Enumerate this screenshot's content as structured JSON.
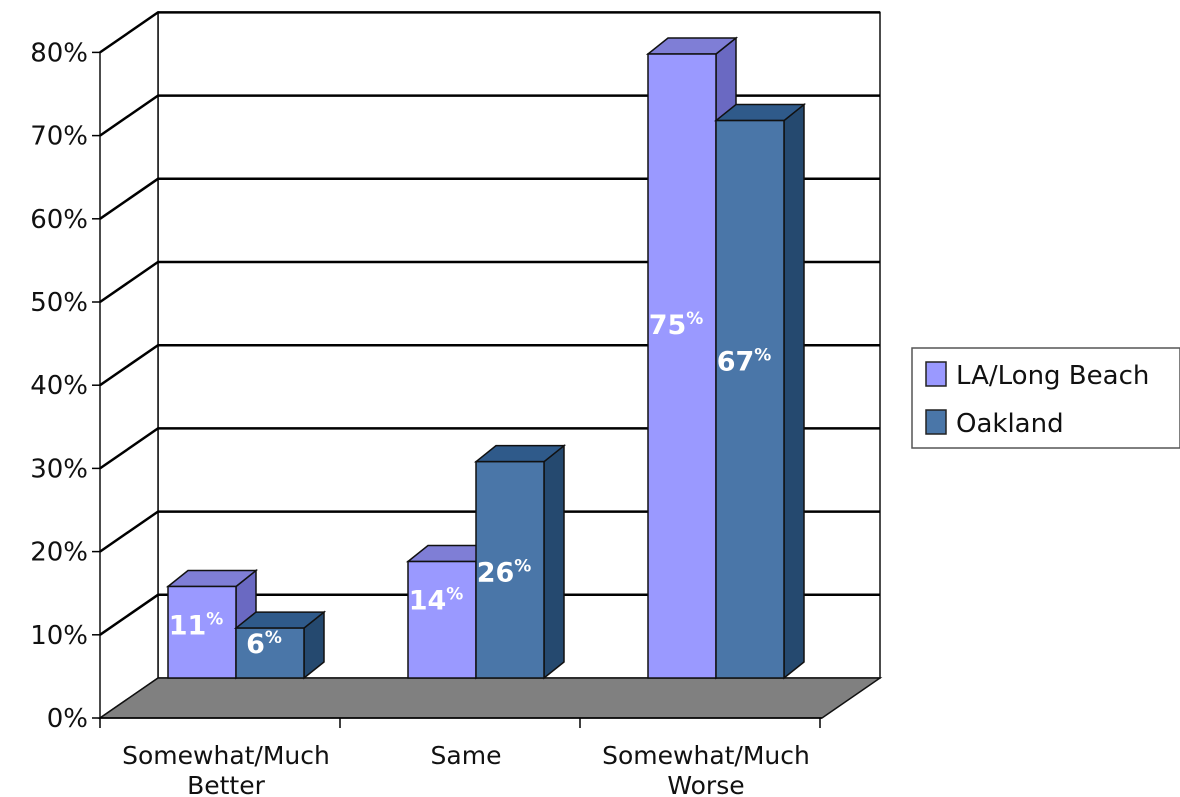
{
  "chart_data": {
    "type": "bar",
    "categories": [
      [
        "Somewhat/Much",
        "Better"
      ],
      [
        "Same"
      ],
      [
        "Somewhat/Much",
        "Worse"
      ]
    ],
    "series": [
      {
        "name": "LA/Long Beach",
        "values": [
          11,
          14,
          75
        ],
        "labels": [
          "11",
          "14",
          "75"
        ],
        "color": "#9a99ff"
      },
      {
        "name": "Oakland",
        "values": [
          6,
          26,
          67
        ],
        "labels": [
          "6",
          "26",
          "67"
        ],
        "color": "#4a76a8"
      }
    ],
    "percent_symbol": "%",
    "ylim": [
      0,
      80
    ],
    "yticks": [
      "0%",
      "10%",
      "20%",
      "30%",
      "40%",
      "50%",
      "60%",
      "70%",
      "80%"
    ],
    "grid": true,
    "legend_position": "right",
    "style": "3d-clustered",
    "floor_color": "#808080"
  }
}
